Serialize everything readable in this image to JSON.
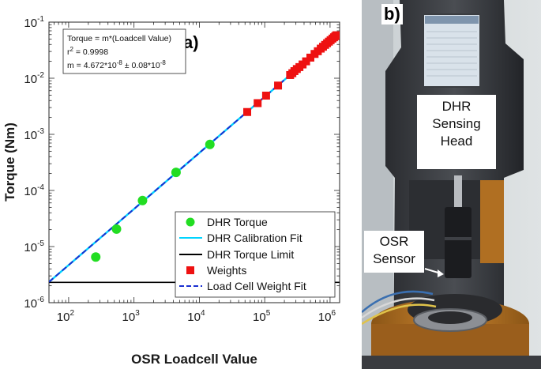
{
  "chart_data": {
    "type": "scatter",
    "panel_label": "a)",
    "xlabel": "OSR Loadcell Value",
    "ylabel": "Torque (Nm)",
    "xscale": "log",
    "yscale": "log",
    "xlim": [
      50,
      1400000
    ],
    "ylim": [
      1e-06,
      0.1
    ],
    "x_ticks": [
      {
        "base": "10",
        "exp": "2",
        "value": 100
      },
      {
        "base": "10",
        "exp": "3",
        "value": 1000
      },
      {
        "base": "10",
        "exp": "4",
        "value": 10000
      },
      {
        "base": "10",
        "exp": "5",
        "value": 100000
      },
      {
        "base": "10",
        "exp": "6",
        "value": 1000000
      }
    ],
    "y_ticks": [
      {
        "base": "10",
        "exp": "-1",
        "value": 0.1
      },
      {
        "base": "10",
        "exp": "-2",
        "value": 0.01
      },
      {
        "base": "10",
        "exp": "-3",
        "value": 0.001
      },
      {
        "base": "10",
        "exp": "-4",
        "value": 0.0001
      },
      {
        "base": "10",
        "exp": "-5",
        "value": 1e-05
      },
      {
        "base": "10",
        "exp": "-6",
        "value": 1e-06
      }
    ],
    "grid": false,
    "legend_position": "bottom-right",
    "annotation": {
      "line1": "Torque = m*(Loadcell Value)",
      "line2_base": "r",
      "line2_sup": "2",
      "line2_rest": " = 0.9998",
      "line3_a": "m = 4.672*10",
      "line3_sup_a": "-8",
      "line3_b": " ± 0.08*10",
      "line3_sup_b": "-8"
    },
    "series": [
      {
        "name": "DHR Torque",
        "kind": "markers",
        "marker": "circle",
        "color": "#22dd22",
        "points": [
          [
            260,
            6.5e-06
          ],
          [
            540,
            2.05e-05
          ],
          [
            1350,
            6.6e-05
          ],
          [
            4400,
            0.00021
          ],
          [
            14500,
            0.00066
          ]
        ]
      },
      {
        "name": "DHR Calibration Fit",
        "kind": "line",
        "color": "#00d4ff",
        "style": "solid",
        "slope": 4.672e-08
      },
      {
        "name": "DHR Torque Limit",
        "kind": "hline",
        "color": "#000000",
        "style": "solid",
        "y": 2.3e-06
      },
      {
        "name": "Weights",
        "kind": "markers",
        "marker": "square",
        "color": "#ee1111",
        "points": [
          [
            54000,
            0.0025
          ],
          [
            78000,
            0.0036
          ],
          [
            105000,
            0.0049
          ],
          [
            160000,
            0.0074
          ],
          [
            245000,
            0.0114
          ],
          [
            265000,
            0.0123
          ],
          [
            285000,
            0.0134
          ],
          [
            310000,
            0.0146
          ],
          [
            340000,
            0.0158
          ],
          [
            380000,
            0.0176
          ],
          [
            430000,
            0.02
          ],
          [
            500000,
            0.0233
          ],
          [
            580000,
            0.0271
          ],
          [
            650000,
            0.0303
          ],
          [
            720000,
            0.0337
          ],
          [
            780000,
            0.0364
          ],
          [
            840000,
            0.0393
          ],
          [
            900000,
            0.0421
          ],
          [
            960000,
            0.0449
          ],
          [
            1020000,
            0.0477
          ],
          [
            1090000,
            0.0509
          ],
          [
            1150000,
            0.0537
          ],
          [
            1200000,
            0.0561
          ],
          [
            1250000,
            0.0584
          ]
        ]
      },
      {
        "name": "Load Cell Weight Fit",
        "kind": "line",
        "color": "#1a2fd0",
        "style": "dashed",
        "slope": 4.672e-08
      }
    ]
  },
  "photo": {
    "panel_label": "b)",
    "head_label_lines": [
      "DHR",
      "Sensing",
      "Head"
    ],
    "sensor_label_lines": [
      "OSR",
      "Sensor"
    ]
  }
}
